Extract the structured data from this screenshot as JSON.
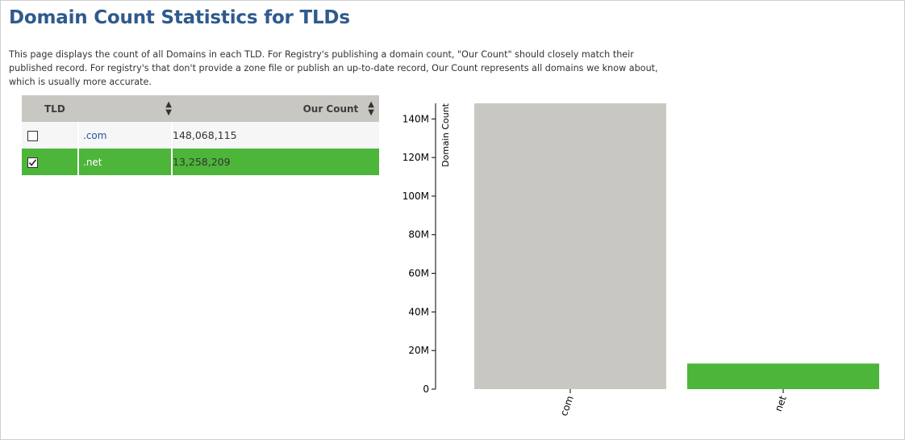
{
  "page": {
    "title": "Domain Count Statistics for TLDs",
    "description": "This page displays the count of all Domains in each TLD. For Registry's publishing a domain count, \"Our Count\" should closely match their published record. For registry's that don't provide a zone file or publish an up-to-date record, Our Count represents all domains we know about, which is usually more accurate."
  },
  "table": {
    "columns": {
      "tld": "TLD",
      "count": "Our Count"
    },
    "rows": [
      {
        "checked": false,
        "tld": ".com",
        "count": "148,068,115"
      },
      {
        "checked": true,
        "tld": ".net",
        "count": "13,258,209"
      }
    ]
  },
  "colors": {
    "title": "#2f5a8c",
    "selected": "#4db53a",
    "bar_default": "#c9c7c2",
    "header_bg": "#c9c7c2"
  },
  "chart_data": {
    "type": "bar",
    "categories": [
      "com",
      "net"
    ],
    "values": [
      148068115,
      13258209
    ],
    "bar_colors": [
      "#c9c7c2",
      "#4db53a"
    ],
    "ylabel": "Domain Count",
    "ylim": [
      0,
      148068115
    ],
    "yticks": [
      0,
      20000000,
      40000000,
      60000000,
      80000000,
      100000000,
      120000000,
      140000000
    ],
    "ytick_labels": [
      "0",
      "20M",
      "40M",
      "60M",
      "80M",
      "100M",
      "120M",
      "140M"
    ]
  }
}
